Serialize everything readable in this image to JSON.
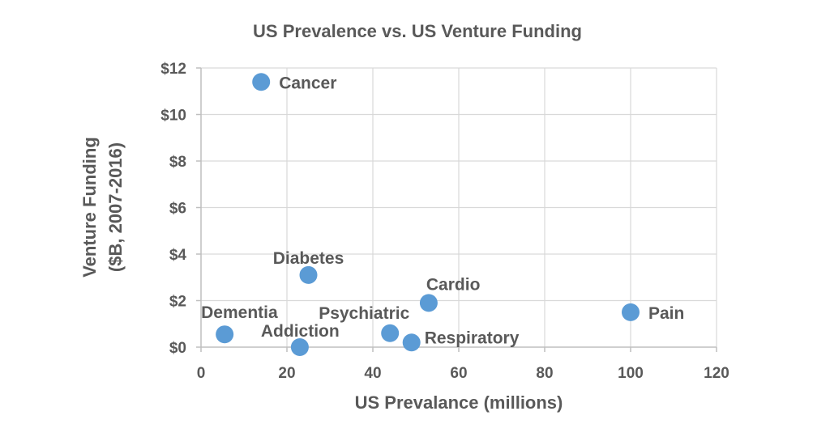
{
  "chart_data": {
    "type": "scatter",
    "title": "US Prevalence vs. US Venture Funding",
    "xlabel": "US Prevalance (millions)",
    "ylabel_lines": [
      "Venture Funding",
      "($B, 2007-2016)"
    ],
    "xlim": [
      0,
      120
    ],
    "ylim": [
      0,
      12
    ],
    "x_ticks": [
      0,
      20,
      40,
      60,
      80,
      100,
      120
    ],
    "x_tick_labels": [
      "0",
      "20",
      "40",
      "60",
      "80",
      "100",
      "120"
    ],
    "y_ticks": [
      0,
      2,
      4,
      6,
      8,
      10,
      12
    ],
    "y_tick_labels": [
      "$0",
      "$2",
      "$4",
      "$6",
      "$8",
      "$10",
      "$12"
    ],
    "grid": true,
    "marker_color": "#5b9bd5",
    "text_color": "#595959",
    "points": [
      {
        "label": "Cancer",
        "x": 14,
        "y": 11.4
      },
      {
        "label": "Diabetes",
        "x": 25,
        "y": 3.1
      },
      {
        "label": "Cardio",
        "x": 53,
        "y": 1.9
      },
      {
        "label": "Pain",
        "x": 100,
        "y": 1.5
      },
      {
        "label": "Dementia",
        "x": 5.5,
        "y": 0.55
      },
      {
        "label": "Addiction",
        "x": 23,
        "y": 0.0
      },
      {
        "label": "Psychiatric",
        "x": 44,
        "y": 0.6
      },
      {
        "label": "Respiratory",
        "x": 49,
        "y": 0.2
      }
    ]
  }
}
